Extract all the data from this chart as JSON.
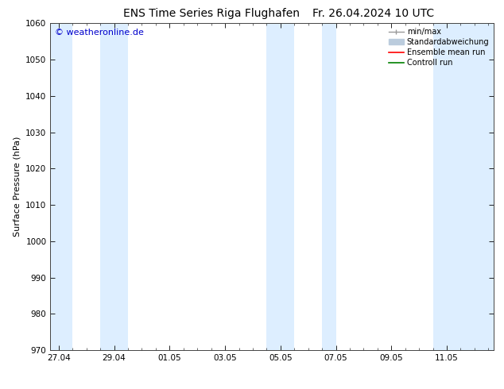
{
  "title_left": "ENS Time Series Riga Flughafen",
  "title_right": "Fr. 26.04.2024 10 UTC",
  "ylabel": "Surface Pressure (hPa)",
  "ylim": [
    970,
    1060
  ],
  "yticks": [
    970,
    980,
    990,
    1000,
    1010,
    1020,
    1030,
    1040,
    1050,
    1060
  ],
  "xtick_labels": [
    "27.04",
    "29.04",
    "01.05",
    "03.05",
    "05.05",
    "07.05",
    "09.05",
    "11.05"
  ],
  "xtick_positions": [
    0,
    2,
    4,
    6,
    8,
    10,
    12,
    14
  ],
  "xmin": -0.3,
  "xmax": 15.7,
  "shaded_bands": [
    {
      "xstart": -0.3,
      "xend": 0.5
    },
    {
      "xstart": 1.5,
      "xend": 2.5
    },
    {
      "xstart": 7.5,
      "xend": 8.5
    },
    {
      "xstart": 9.5,
      "xend": 10.0
    },
    {
      "xstart": 13.5,
      "xend": 15.7
    }
  ],
  "shaded_color": "#ddeeff",
  "watermark": "© weatheronline.de",
  "watermark_color": "#0000cc",
  "legend_entries": [
    {
      "label": "min/max",
      "color": "#999999",
      "lw": 1.0,
      "linestyle": "-",
      "type": "errorbar"
    },
    {
      "label": "Standardabweichung",
      "color": "#bbccdd",
      "lw": 5,
      "linestyle": "-",
      "type": "band"
    },
    {
      "label": "Ensemble mean run",
      "color": "red",
      "lw": 1.2,
      "linestyle": "-",
      "type": "line"
    },
    {
      "label": "Controll run",
      "color": "green",
      "lw": 1.2,
      "linestyle": "-",
      "type": "line"
    }
  ],
  "bg_color": "#ffffff",
  "spine_color": "#444444",
  "title_fontsize": 10,
  "tick_fontsize": 7.5,
  "ylabel_fontsize": 8,
  "watermark_fontsize": 8,
  "legend_fontsize": 7
}
